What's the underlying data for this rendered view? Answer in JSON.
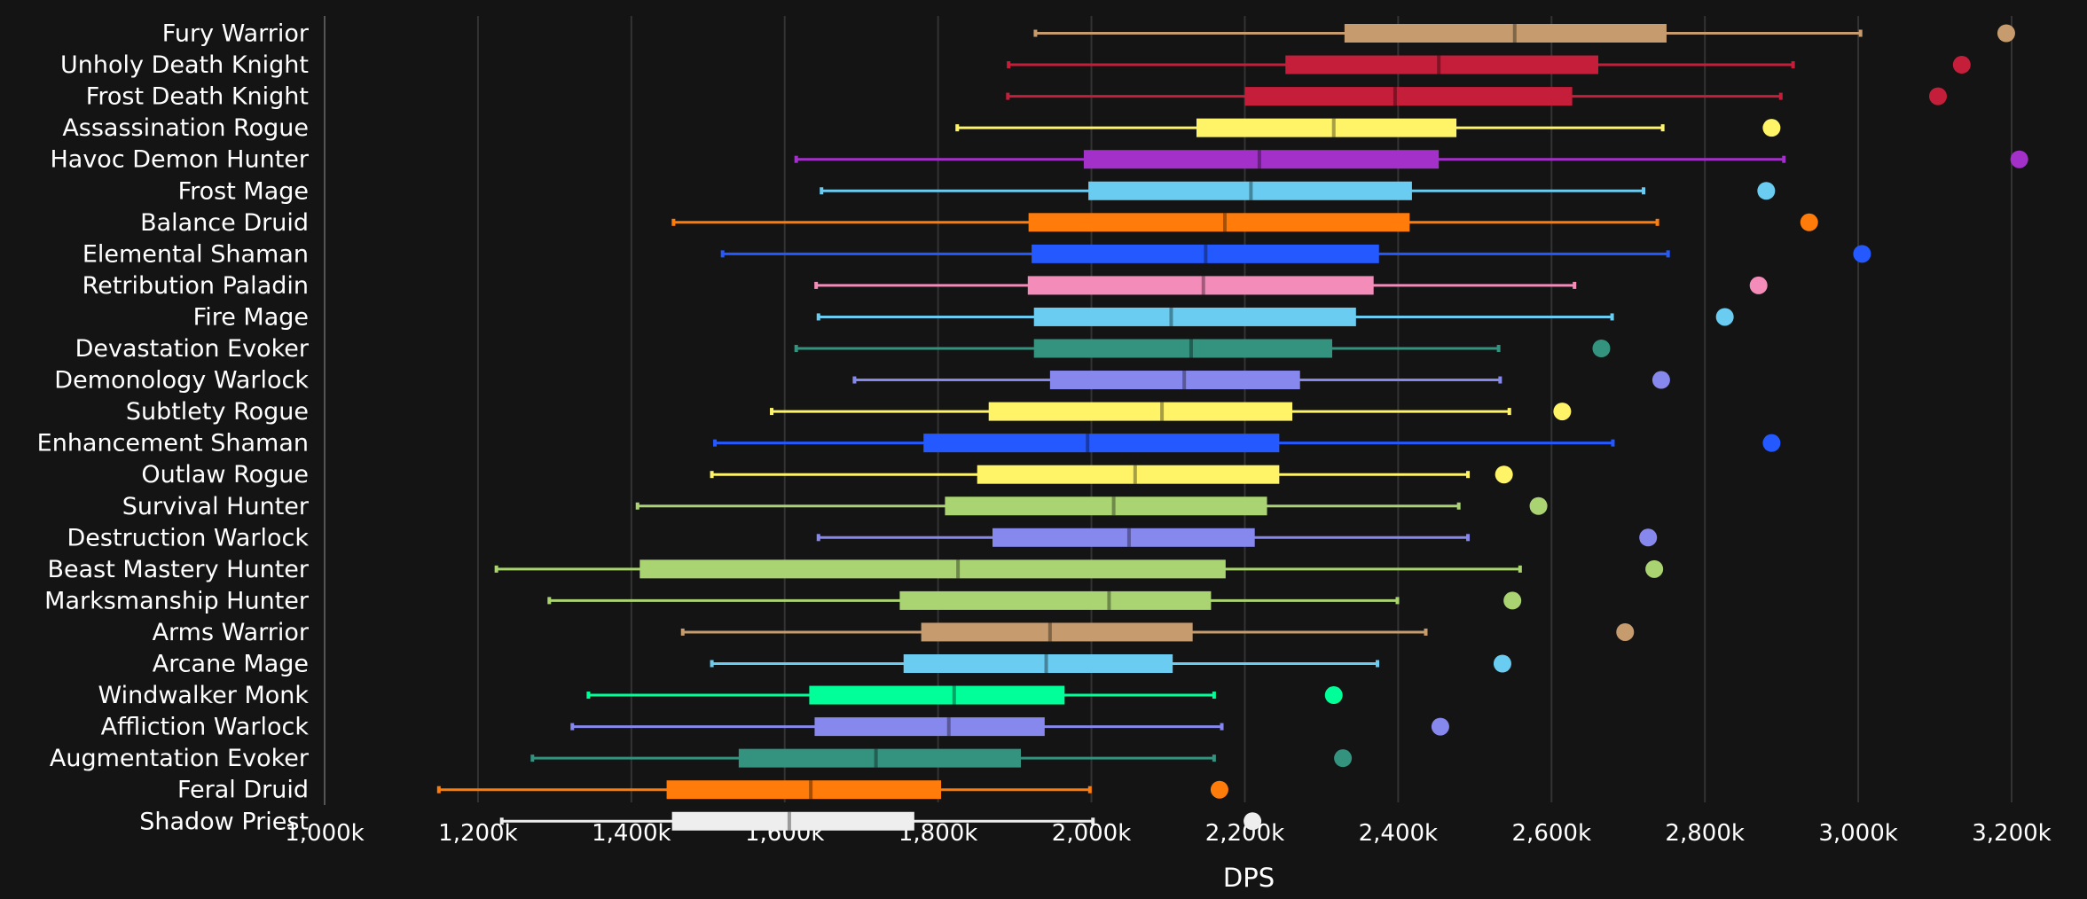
{
  "chart_data": {
    "type": "box",
    "xlabel": "DPS",
    "xlim": [
      1000,
      3200
    ],
    "x_unit": "k",
    "x_ticks": [
      "1,000k",
      "1,200k",
      "1,400k",
      "1,600k",
      "1,800k",
      "2,000k",
      "2,200k",
      "2,400k",
      "2,600k",
      "2,800k",
      "3,000k",
      "3,200k"
    ],
    "x_tick_values": [
      1000,
      1200,
      1400,
      1600,
      1800,
      2000,
      2200,
      2400,
      2600,
      2800,
      3000,
      3200
    ],
    "grid": "vertical",
    "series": [
      {
        "name": "Fury Warrior",
        "color": "#C69B6D",
        "min": 1927,
        "q1": 2330,
        "median": 2552,
        "q3": 2750,
        "max": 3003,
        "point": 3193
      },
      {
        "name": "Unholy Death Knight",
        "color": "#C41E3A",
        "min": 1892,
        "q1": 2253,
        "median": 2453,
        "q3": 2661,
        "max": 2915,
        "point": 3135
      },
      {
        "name": "Frost Death Knight",
        "color": "#C41E3A",
        "min": 1891,
        "q1": 2200,
        "median": 2396,
        "q3": 2627,
        "max": 2899,
        "point": 3104
      },
      {
        "name": "Assassination Rogue",
        "color": "#FFF468",
        "min": 1825,
        "q1": 2137,
        "median": 2316,
        "q3": 2476,
        "max": 2745,
        "point": 2887
      },
      {
        "name": "Havoc Demon Hunter",
        "color": "#A330C9",
        "min": 1615,
        "q1": 1990,
        "median": 2219,
        "q3": 2453,
        "max": 2903,
        "point": 3210
      },
      {
        "name": "Frost Mage",
        "color": "#69CCF0",
        "min": 1648,
        "q1": 1996,
        "median": 2208,
        "q3": 2418,
        "max": 2720,
        "point": 2880
      },
      {
        "name": "Balance Druid",
        "color": "#FF7C0A",
        "min": 1455,
        "q1": 1918,
        "median": 2174,
        "q3": 2415,
        "max": 2738,
        "point": 2936
      },
      {
        "name": "Elemental Shaman",
        "color": "#2459FF",
        "min": 1519,
        "q1": 1922,
        "median": 2149,
        "q3": 2375,
        "max": 2752,
        "point": 3005
      },
      {
        "name": "Retribution Paladin",
        "color": "#F48CBA",
        "min": 1641,
        "q1": 1917,
        "median": 2146,
        "q3": 2368,
        "max": 2630,
        "point": 2870
      },
      {
        "name": "Fire Mage",
        "color": "#69CCF0",
        "min": 1644,
        "q1": 1925,
        "median": 2104,
        "q3": 2345,
        "max": 2679,
        "point": 2826
      },
      {
        "name": "Devastation Evoker",
        "color": "#33937F",
        "min": 1615,
        "q1": 1925,
        "median": 2130,
        "q3": 2314,
        "max": 2531,
        "point": 2665
      },
      {
        "name": "Demonology Warlock",
        "color": "#8788EE",
        "min": 1691,
        "q1": 1946,
        "median": 2121,
        "q3": 2272,
        "max": 2533,
        "point": 2743
      },
      {
        "name": "Subtlety Rogue",
        "color": "#FFF468",
        "min": 1583,
        "q1": 1866,
        "median": 2092,
        "q3": 2262,
        "max": 2545,
        "point": 2614
      },
      {
        "name": "Enhancement Shaman",
        "color": "#2459FF",
        "min": 1509,
        "q1": 1781,
        "median": 1995,
        "q3": 2245,
        "max": 2680,
        "point": 2887
      },
      {
        "name": "Outlaw Rogue",
        "color": "#FFF468",
        "min": 1505,
        "q1": 1851,
        "median": 2057,
        "q3": 2245,
        "max": 2491,
        "point": 2538
      },
      {
        "name": "Survival Hunter",
        "color": "#AAD372",
        "min": 1408,
        "q1": 1809,
        "median": 2029,
        "q3": 2229,
        "max": 2479,
        "point": 2583
      },
      {
        "name": "Destruction Warlock",
        "color": "#8788EE",
        "min": 1644,
        "q1": 1871,
        "median": 2049,
        "q3": 2213,
        "max": 2491,
        "point": 2726
      },
      {
        "name": "Beast Mastery Hunter",
        "color": "#AAD372",
        "min": 1224,
        "q1": 1411,
        "median": 1826,
        "q3": 2175,
        "max": 2559,
        "point": 2734
      },
      {
        "name": "Marksmanship Hunter",
        "color": "#AAD372",
        "min": 1293,
        "q1": 1750,
        "median": 2023,
        "q3": 2156,
        "max": 2399,
        "point": 2549
      },
      {
        "name": "Arms Warrior",
        "color": "#C69B6D",
        "min": 1467,
        "q1": 1778,
        "median": 1946,
        "q3": 2132,
        "max": 2436,
        "point": 2696
      },
      {
        "name": "Arcane Mage",
        "color": "#69CCF0",
        "min": 1505,
        "q1": 1755,
        "median": 1941,
        "q3": 2106,
        "max": 2373,
        "point": 2536
      },
      {
        "name": "Windwalker Monk",
        "color": "#00FF98",
        "min": 1344,
        "q1": 1632,
        "median": 1821,
        "q3": 1965,
        "max": 2160,
        "point": 2316
      },
      {
        "name": "Affliction Warlock",
        "color": "#8788EE",
        "min": 1323,
        "q1": 1639,
        "median": 1814,
        "q3": 1939,
        "max": 2170,
        "point": 2455
      },
      {
        "name": "Augmentation Evoker",
        "color": "#33937F",
        "min": 1271,
        "q1": 1540,
        "median": 1719,
        "q3": 1908,
        "max": 2160,
        "point": 2328
      },
      {
        "name": "Feral Druid",
        "color": "#FF7C0A",
        "min": 1149,
        "q1": 1446,
        "median": 1634,
        "q3": 1804,
        "max": 1998,
        "point": 2167
      },
      {
        "name": "Shadow Priest",
        "color": "#EEEEEE",
        "min": 1231,
        "q1": 1453,
        "median": 1606,
        "q3": 1769,
        "max": 2002,
        "point": 2210
      }
    ]
  }
}
